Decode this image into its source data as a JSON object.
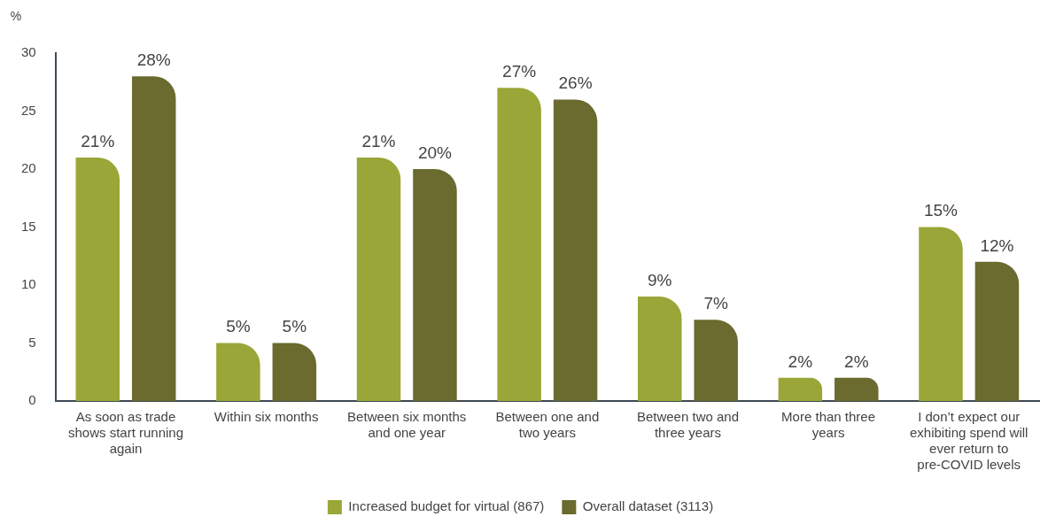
{
  "chart_data": {
    "type": "bar",
    "ylabel": "%",
    "categories": [
      "As soon as trade shows start running again",
      "Within six months",
      "Between six months and one year",
      "Between one and two years",
      "Between two and three years",
      "More than three years",
      "I don’t expect our exhibiting spend will ever return to pre-COVID levels"
    ],
    "series": [
      {
        "name": "Increased budget for virtual (867)",
        "color": "#9aa637",
        "values": [
          21,
          5,
          21,
          27,
          9,
          2,
          15
        ],
        "value_labels": [
          "21%",
          "5%",
          "21%",
          "27%",
          "9%",
          "2%",
          "15%"
        ]
      },
      {
        "name": "Overall dataset (3113)",
        "color": "#6b6a2f",
        "values": [
          28,
          5,
          20,
          26,
          7,
          2,
          12
        ],
        "value_labels": [
          "28%",
          "5%",
          "20%",
          "26%",
          "7%",
          "2%",
          "12%"
        ]
      }
    ],
    "ylim": [
      0,
      30
    ],
    "yticks": [
      0,
      5,
      10,
      15,
      20,
      25,
      30
    ],
    "grid": false,
    "legend": "bottom"
  }
}
